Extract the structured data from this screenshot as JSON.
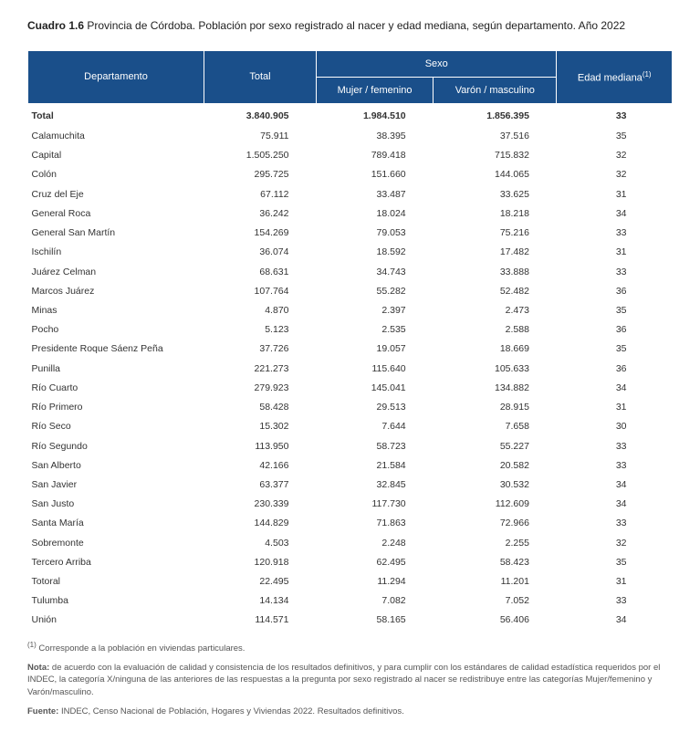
{
  "title_prefix": "Cuadro 1.6",
  "title_rest": " Provincia de Córdoba. Población por sexo registrado al nacer y edad mediana, según departamento. Año 2022",
  "headers": {
    "department": "Departamento",
    "total": "Total",
    "sex": "Sexo",
    "female": "Mujer / femenino",
    "male": "Varón / masculino",
    "median_age": "Edad mediana",
    "median_age_sup": "(1)"
  },
  "totals_row": {
    "label": "Total",
    "total": "3.840.905",
    "female": "1.984.510",
    "male": "1.856.395",
    "age": "33"
  },
  "rows": [
    {
      "d": "Calamuchita",
      "t": "75.911",
      "f": "38.395",
      "m": "37.516",
      "a": "35"
    },
    {
      "d": "Capital",
      "t": "1.505.250",
      "f": "789.418",
      "m": "715.832",
      "a": "32"
    },
    {
      "d": "Colón",
      "t": "295.725",
      "f": "151.660",
      "m": "144.065",
      "a": "32"
    },
    {
      "d": "Cruz del Eje",
      "t": "67.112",
      "f": "33.487",
      "m": "33.625",
      "a": "31"
    },
    {
      "d": "General Roca",
      "t": "36.242",
      "f": "18.024",
      "m": "18.218",
      "a": "34"
    },
    {
      "d": "General San Martín",
      "t": "154.269",
      "f": "79.053",
      "m": "75.216",
      "a": "33"
    },
    {
      "d": "Ischilín",
      "t": "36.074",
      "f": "18.592",
      "m": "17.482",
      "a": "31"
    },
    {
      "d": "Juárez Celman",
      "t": "68.631",
      "f": "34.743",
      "m": "33.888",
      "a": "33"
    },
    {
      "d": "Marcos Juárez",
      "t": "107.764",
      "f": "55.282",
      "m": "52.482",
      "a": "36"
    },
    {
      "d": "Minas",
      "t": "4.870",
      "f": "2.397",
      "m": "2.473",
      "a": "35"
    },
    {
      "d": "Pocho",
      "t": "5.123",
      "f": "2.535",
      "m": "2.588",
      "a": "36"
    },
    {
      "d": "Presidente Roque Sáenz Peña",
      "t": "37.726",
      "f": "19.057",
      "m": "18.669",
      "a": "35"
    },
    {
      "d": "Punilla",
      "t": "221.273",
      "f": "115.640",
      "m": "105.633",
      "a": "36"
    },
    {
      "d": "Río Cuarto",
      "t": "279.923",
      "f": "145.041",
      "m": "134.882",
      "a": "34"
    },
    {
      "d": "Río Primero",
      "t": "58.428",
      "f": "29.513",
      "m": "28.915",
      "a": "31"
    },
    {
      "d": "Río Seco",
      "t": "15.302",
      "f": "7.644",
      "m": "7.658",
      "a": "30"
    },
    {
      "d": "Río Segundo",
      "t": "113.950",
      "f": "58.723",
      "m": "55.227",
      "a": "33"
    },
    {
      "d": "San Alberto",
      "t": "42.166",
      "f": "21.584",
      "m": "20.582",
      "a": "33"
    },
    {
      "d": "San Javier",
      "t": "63.377",
      "f": "32.845",
      "m": "30.532",
      "a": "34"
    },
    {
      "d": "San Justo",
      "t": "230.339",
      "f": "117.730",
      "m": "112.609",
      "a": "34"
    },
    {
      "d": "Santa María",
      "t": "144.829",
      "f": "71.863",
      "m": "72.966",
      "a": "33"
    },
    {
      "d": "Sobremonte",
      "t": "4.503",
      "f": "2.248",
      "m": "2.255",
      "a": "32"
    },
    {
      "d": "Tercero Arriba",
      "t": "120.918",
      "f": "62.495",
      "m": "58.423",
      "a": "35"
    },
    {
      "d": "Totoral",
      "t": "22.495",
      "f": "11.294",
      "m": "11.201",
      "a": "31"
    },
    {
      "d": "Tulumba",
      "t": "14.134",
      "f": "7.082",
      "m": "7.052",
      "a": "33"
    },
    {
      "d": "Unión",
      "t": "114.571",
      "f": "58.165",
      "m": "56.406",
      "a": "34"
    }
  ],
  "footnote_sup": "(1)",
  "footnote_text": " Corresponde a la población en viviendas particulares.",
  "note_label": "Nota:",
  "note_text": " de acuerdo con la evaluación de calidad y consistencia de los resultados definitivos, y para cumplir con los estándares de calidad estadística requeridos por el INDEC, la categoría X/ninguna de las anteriores de las respuestas a la pregunta por sexo registrado al nacer se redistribuye entre las categorías Mujer/femenino y Varón/masculino.",
  "source_label": "Fuente:",
  "source_text": " INDEC, Censo Nacional de Población, Hogares y Viviendas 2022. Resultados definitivos.",
  "style": {
    "header_bg": "#1a4f8a",
    "header_fg": "#ffffff",
    "body_font_size": 10.5,
    "title_font_size": 12
  }
}
